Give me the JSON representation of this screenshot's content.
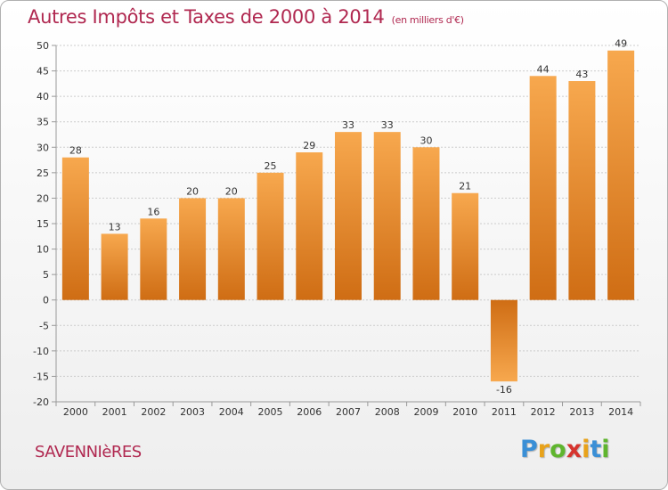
{
  "title": "Autres Impôts et Taxes de 2000 à 2014",
  "subtitle": "(en milliers d'€)",
  "town": "SAVENNIèRES",
  "logo": {
    "letters": [
      "P",
      "r",
      "o",
      "x",
      "i",
      "t",
      "i"
    ],
    "colors": [
      "#3a8fd6",
      "#e8a21a",
      "#5fb52e",
      "#d6342e",
      "#e8a21a",
      "#3a8fd6",
      "#5fb52e"
    ]
  },
  "colors": {
    "bar_light": "#f7a84e",
    "bar_dark": "#cf6d14",
    "axis": "#999999",
    "grid": "#cccccc"
  },
  "chart_data": {
    "type": "bar",
    "categories": [
      "2000",
      "2001",
      "2002",
      "2003",
      "2004",
      "2005",
      "2006",
      "2007",
      "2008",
      "2009",
      "2010",
      "2011",
      "2012",
      "2013",
      "2014"
    ],
    "values": [
      28,
      13,
      16,
      20,
      20,
      25,
      29,
      33,
      33,
      30,
      21,
      -16,
      44,
      43,
      49
    ],
    "data_labels": [
      "28",
      "13",
      "16",
      "20",
      "20",
      "25",
      "29",
      "33",
      "33",
      "30",
      "21",
      "-16",
      "44",
      "43",
      "49"
    ],
    "yticks": [
      50,
      45,
      40,
      35,
      30,
      25,
      20,
      15,
      10,
      5,
      0,
      -5,
      -10,
      -15,
      -20
    ],
    "ytick_labels": [
      "50",
      "45",
      "40",
      "35",
      "30",
      "25",
      "20",
      "15",
      "10",
      "5",
      "0",
      "-5",
      "-10",
      "-15",
      "-20"
    ],
    "ylim": [
      -20,
      50
    ],
    "grid": true
  }
}
